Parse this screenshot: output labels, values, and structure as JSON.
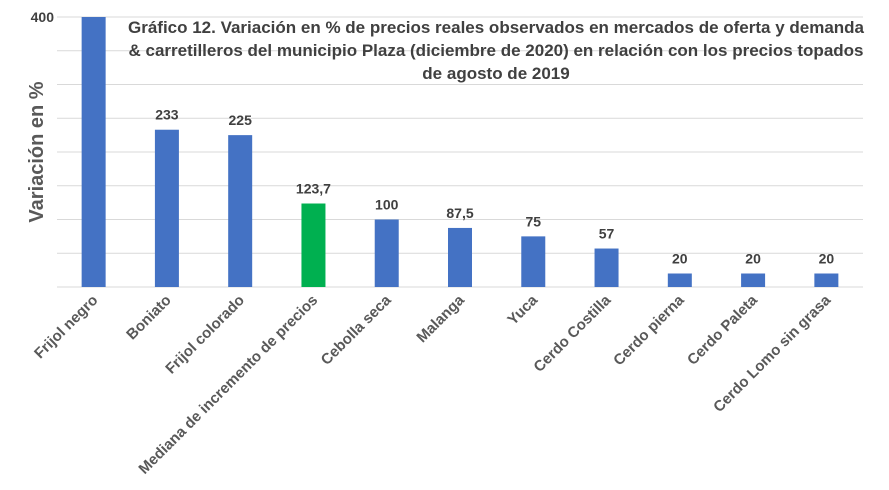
{
  "chart_data": {
    "type": "bar",
    "title_lines": [
      "Gráfico 12. Variación en % de precios reales observados en mercados de oferta y demanda",
      "& carretilleros del municipio Plaza (diciembre de 2020) en relación con los precios topados",
      "de agosto de 2019"
    ],
    "ylabel": "Variación en %",
    "xlabel": "",
    "categories": [
      "Frijol negro",
      "Boniato",
      "Frijol colorado",
      "Mediana de incremento de precios",
      "Cebolla seca",
      "Malanga",
      "Yuca",
      "Cerdo Costilla",
      "Cerdo pierna",
      "Cerdo Paleta",
      "Cerdo Lomo sin grasa"
    ],
    "values": [
      400,
      233,
      225,
      123.7,
      100,
      87.5,
      75,
      57,
      20,
      20,
      20
    ],
    "value_labels": [
      "400",
      "233",
      "225",
      "123,7",
      "100",
      "87,5",
      "75",
      "57",
      "20",
      "20",
      "20"
    ],
    "y_tick_labels": [
      "400"
    ],
    "ylim": [
      0,
      400
    ],
    "grid": true,
    "legend": "none",
    "colors": {
      "default_bar": "#4472c4",
      "highlight_bar": "#00b050"
    },
    "highlight_index": 3
  }
}
